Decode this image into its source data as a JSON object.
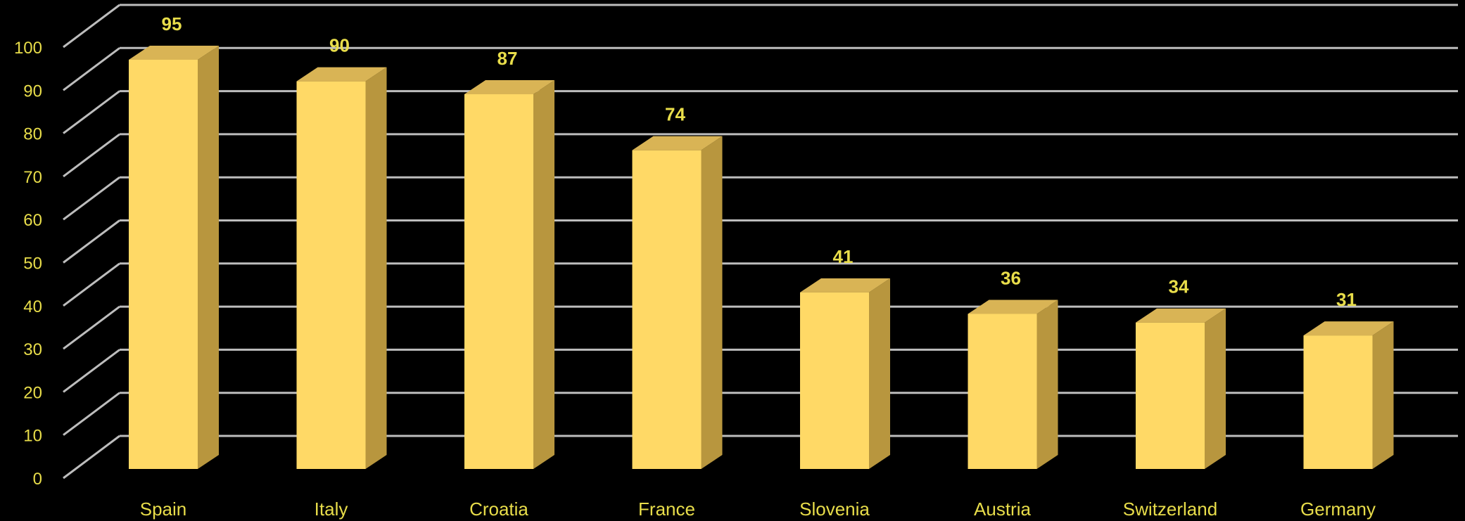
{
  "chart_data": {
    "type": "bar",
    "title": "",
    "xlabel": "",
    "ylabel": "",
    "categories": [
      "Spain",
      "Italy",
      "Croatia",
      "France",
      "Slovenia",
      "Austria",
      "Switzerland",
      "Germany"
    ],
    "values": [
      95,
      90,
      87,
      74,
      41,
      36,
      34,
      31
    ],
    "ylim": [
      0,
      100
    ],
    "yticks": [
      0,
      10,
      20,
      30,
      40,
      50,
      60,
      70,
      80,
      90,
      100
    ],
    "grid": true,
    "legend": "none",
    "style": "3d-column",
    "colors": {
      "background": "#000000",
      "bar_front": "#ffd966",
      "bar_side": "#b8963e",
      "bar_top": "#d9b455",
      "gridline": "#bdbdbd",
      "text": "#e8dd4a"
    }
  }
}
